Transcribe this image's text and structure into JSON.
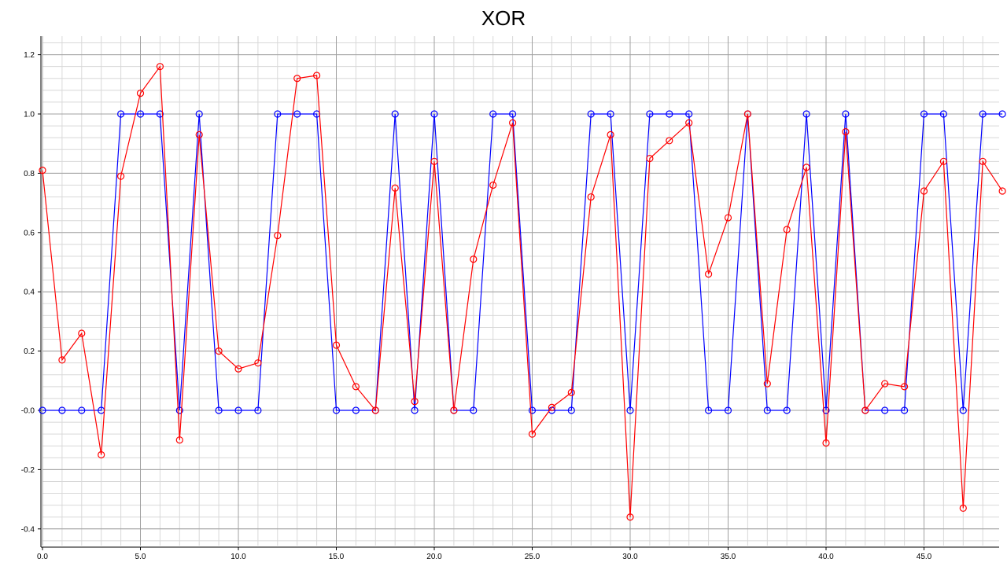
{
  "chart_data": {
    "type": "line",
    "title": "XOR",
    "xlabel": "",
    "ylabel": "",
    "xlim": [
      0,
      49
    ],
    "ylim": [
      -0.45,
      1.3
    ],
    "grid": true,
    "x_ticks": [
      0,
      5,
      10,
      15,
      20,
      25,
      30,
      35,
      40,
      45
    ],
    "x_tick_labels": [
      "0.0",
      "5.0",
      "10.0",
      "15.0",
      "20.0",
      "25.0",
      "30.0",
      "35.0",
      "40.0",
      "45.0"
    ],
    "y_ticks": [
      -0.4,
      -0.2,
      0.0,
      0.2,
      0.4,
      0.6,
      0.8,
      1.0,
      1.2
    ],
    "y_tick_labels": [
      "-0.4",
      "-0.2",
      "-0.0",
      "0.2",
      "0.4",
      "0.6",
      "0.8",
      "1.0",
      "1.2"
    ],
    "series": [
      {
        "color": "#0000ff",
        "x": [
          0,
          1,
          2,
          3,
          4,
          5,
          6,
          7,
          8,
          9,
          10,
          11,
          12,
          13,
          14,
          15,
          16,
          17,
          18,
          19,
          20,
          21,
          22,
          23,
          24,
          25,
          26,
          27,
          28,
          29,
          30,
          31,
          32,
          33,
          34,
          35,
          36,
          37,
          38,
          39,
          40,
          41,
          42,
          43,
          44,
          45,
          46,
          47,
          48,
          49
        ],
        "values": [
          0,
          0,
          0,
          0,
          1,
          1,
          1,
          0,
          1,
          0,
          0,
          0,
          1,
          1,
          1,
          0,
          0,
          0,
          1,
          0,
          1,
          0,
          0,
          1,
          1,
          0,
          0,
          0,
          1,
          1,
          0,
          1,
          1,
          1,
          0,
          0,
          1,
          0,
          0,
          1,
          0,
          1,
          0,
          0,
          0,
          1,
          1,
          0,
          1,
          1
        ]
      },
      {
        "color": "#ff0000",
        "x": [
          0,
          1,
          2,
          3,
          4,
          5,
          6,
          7,
          8,
          9,
          10,
          11,
          12,
          13,
          14,
          15,
          16,
          17,
          18,
          19,
          20,
          21,
          22,
          23,
          24,
          25,
          26,
          27,
          28,
          29,
          30,
          31,
          32,
          33,
          34,
          35,
          36,
          37,
          38,
          39,
          40,
          41,
          42,
          43,
          44,
          45,
          46,
          47,
          48,
          49
        ],
        "values": [
          0.81,
          0.17,
          0.26,
          -0.15,
          0.79,
          1.07,
          1.16,
          -0.1,
          0.93,
          0.2,
          0.14,
          0.16,
          0.59,
          1.12,
          1.13,
          0.22,
          0.08,
          0.0,
          0.75,
          0.03,
          0.84,
          0.0,
          0.51,
          0.76,
          0.97,
          -0.08,
          0.01,
          0.06,
          0.72,
          0.93,
          -0.36,
          0.85,
          0.91,
          0.97,
          0.46,
          0.65,
          1.0,
          0.09,
          0.61,
          0.82,
          -0.11,
          0.94,
          0.0,
          0.09,
          0.08,
          0.74,
          0.84,
          -0.33,
          0.84,
          0.74
        ]
      }
    ]
  }
}
